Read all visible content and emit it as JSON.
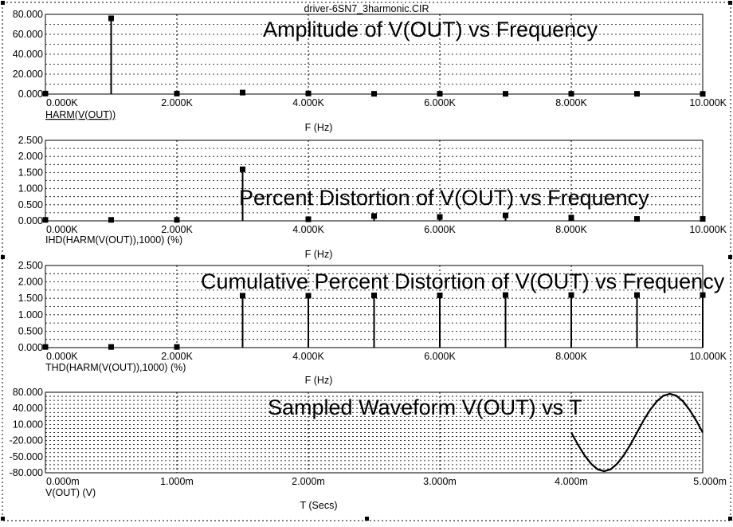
{
  "window": {
    "title": "driver-6SN7_3harmonic.CIR"
  },
  "colors": {
    "axes": "#000000",
    "grid": "#000000",
    "trace": "#000000",
    "background": "#ffffff"
  },
  "chart_data": [
    {
      "type": "bar",
      "title": "Amplitude of V(OUT) vs Frequency",
      "xlabel": "F (Hz)",
      "ylabel": "HARM(V(OUT))",
      "xlim": [
        0,
        10000
      ],
      "ylim": [
        0,
        80
      ],
      "yticks": [
        "80.000",
        "60.000",
        "40.000",
        "20.000",
        "0.000"
      ],
      "xticks": [
        "0.000K",
        "2.000K",
        "4.000K",
        "6.000K",
        "8.000K",
        "10.000K"
      ],
      "grid": true,
      "x": [
        0,
        1000,
        2000,
        3000,
        4000,
        5000,
        6000,
        7000,
        8000,
        9000,
        10000
      ],
      "values": [
        0.5,
        76,
        0.5,
        1.5,
        0.6,
        0.3,
        0.3,
        0.3,
        0.3,
        0.3,
        0.2
      ]
    },
    {
      "type": "bar",
      "title": "Percent Distortion of V(OUT) vs Frequency",
      "xlabel": "F (Hz)",
      "ylabel": "IHD(HARM(V(OUT)),1000) (%)",
      "xlim": [
        0,
        10000
      ],
      "ylim": [
        0,
        2.5
      ],
      "yticks": [
        "2.500",
        "2.000",
        "1.500",
        "1.000",
        "0.500",
        "0.000"
      ],
      "xticks": [
        "0.000K",
        "2.000K",
        "4.000K",
        "6.000K",
        "8.000K",
        "10.000K"
      ],
      "grid": true,
      "x": [
        0,
        1000,
        2000,
        3000,
        4000,
        5000,
        6000,
        7000,
        8000,
        9000,
        10000
      ],
      "values": [
        0.03,
        0.03,
        0.03,
        1.6,
        0.05,
        0.15,
        0.12,
        0.17,
        0.1,
        0.06,
        0.06
      ]
    },
    {
      "type": "bar",
      "title": "Cumulative Percent Distortion of V(OUT) vs Frequency",
      "xlabel": "F (Hz)",
      "ylabel": "THD(HARM(V(OUT)),1000) (%)",
      "xlim": [
        0,
        10000
      ],
      "ylim": [
        0,
        2.5
      ],
      "yticks": [
        "2.500",
        "2.000",
        "1.500",
        "1.000",
        "0.500",
        "0.000"
      ],
      "xticks": [
        "0.000K",
        "2.000K",
        "4.000K",
        "6.000K",
        "8.000K",
        "10.000K"
      ],
      "grid": true,
      "x": [
        0,
        1000,
        2000,
        3000,
        4000,
        5000,
        6000,
        7000,
        8000,
        9000,
        10000
      ],
      "values": [
        0.02,
        0.02,
        0.02,
        1.58,
        1.58,
        1.59,
        1.59,
        1.6,
        1.6,
        1.6,
        1.6
      ]
    },
    {
      "type": "line",
      "title": "Sampled Waveform  V(OUT) vs T",
      "xlabel": "T (Secs)",
      "ylabel": "V(OUT) (V)",
      "xlim": [
        0,
        5
      ],
      "ylim": [
        -80,
        80
      ],
      "yticks": [
        "80.000",
        "40.000",
        "10.000",
        "-20.000",
        "-50.000",
        "-80.000"
      ],
      "xticks": [
        "0.000m",
        "1.000m",
        "2.000m",
        "3.000m",
        "4.000m",
        "5.000m"
      ],
      "grid": true,
      "series": [
        {
          "x": [
            4.0,
            4.05,
            4.1,
            4.15,
            4.2,
            4.25,
            4.3,
            4.35,
            4.4,
            4.45,
            4.5,
            4.55,
            4.6,
            4.65,
            4.7,
            4.75,
            4.8,
            4.85,
            4.9,
            4.95,
            5.0
          ],
          "values": [
            0,
            -24,
            -45,
            -62,
            -73,
            -77,
            -73,
            -62,
            -45,
            -24,
            0,
            24,
            45,
            62,
            73,
            77,
            73,
            62,
            45,
            24,
            0
          ]
        }
      ]
    }
  ]
}
